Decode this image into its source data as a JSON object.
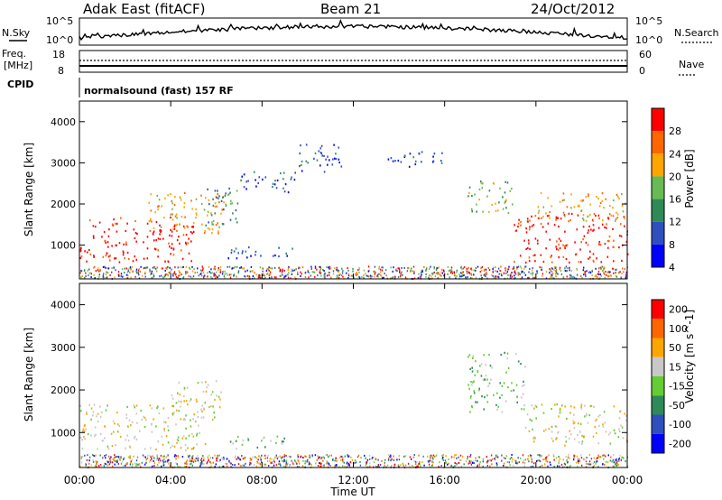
{
  "header": {
    "station": "Adak East (fitACF)",
    "beam": "Beam 21",
    "date": "24/Oct/2012"
  },
  "top_panel": {
    "left_label": "N.Sky",
    "right_label": "N.Search",
    "left_ticks": [
      "10^5",
      "10^0"
    ],
    "right_ticks": [
      "10^5",
      "10^0"
    ]
  },
  "freq_panel": {
    "left_label_line1": "Freq.",
    "left_label_line2": "[MHz]",
    "right_label": "Nave",
    "left_ticks": [
      "18",
      "8"
    ],
    "right_ticks": [
      "60",
      "0"
    ]
  },
  "cpid": {
    "label": "CPID",
    "program": "normalsound (fast) 157 RF"
  },
  "colors": {
    "power_scale": [
      "#0000ff",
      "#2f4fbf",
      "#2e8b57",
      "#66bb55",
      "#ffa500",
      "#ff6600",
      "#ff0000"
    ],
    "velocity_scale": [
      "#0000ff",
      "#2f4fbf",
      "#2e8b57",
      "#66cc33",
      "#c8c8c8",
      "#ffa500",
      "#ff6600",
      "#ff0000"
    ],
    "ground_scatter": "#c8c8c8"
  },
  "chart_data": [
    {
      "type": "heatmap",
      "name": "power",
      "xlabel": "",
      "ylabel": "Slant Range [km]",
      "xlim": [
        0,
        24
      ],
      "ylim": [
        180,
        4500
      ],
      "yticks": [
        "1000",
        "2000",
        "3000",
        "4000"
      ],
      "colorbar_label": "Power [dB]",
      "colorbar_ticks": [
        "28",
        "24",
        "20",
        "16",
        "12",
        "8",
        "4"
      ],
      "scatter_regions": [
        {
          "t0": 0.0,
          "t1": 5.0,
          "r0": 600,
          "r1": 1700,
          "level": 6
        },
        {
          "t0": 3.0,
          "t1": 6.3,
          "r0": 1300,
          "r1": 2300,
          "level": 4
        },
        {
          "t0": 5.5,
          "t1": 7.0,
          "r0": 1500,
          "r1": 2500,
          "level": 2
        },
        {
          "t0": 6.5,
          "t1": 9.5,
          "r0": 700,
          "r1": 1000,
          "level": 1
        },
        {
          "t0": 7.0,
          "t1": 9.5,
          "r0": 2300,
          "r1": 2800,
          "level": 1
        },
        {
          "t0": 9.5,
          "t1": 11.5,
          "r0": 2800,
          "r1": 3500,
          "level": 1
        },
        {
          "t0": 13.5,
          "t1": 16.0,
          "r0": 2900,
          "r1": 3300,
          "level": 1
        },
        {
          "t0": 17.0,
          "t1": 19.0,
          "r0": 1800,
          "r1": 2600,
          "level": 3
        },
        {
          "t0": 19.0,
          "t1": 24.0,
          "r0": 600,
          "r1": 1800,
          "level": 6
        },
        {
          "t0": 20.0,
          "t1": 24.0,
          "r0": 1600,
          "r1": 2300,
          "level": 4
        }
      ]
    },
    {
      "type": "heatmap",
      "name": "velocity",
      "xlabel": "Time UT",
      "ylabel": "Slant Range [km]",
      "xlim": [
        0,
        24
      ],
      "ylim": [
        180,
        4500
      ],
      "xticks": [
        "00:00",
        "04:00",
        "08:00",
        "12:00",
        "16:00",
        "20:00",
        "00:00"
      ],
      "yticks": [
        "1000",
        "2000",
        "3000",
        "4000"
      ],
      "colorbar_label": "Velocity [m s^-1]",
      "colorbar_ticks": [
        "200",
        "100",
        "50",
        "15",
        "-15",
        "-50",
        "-100",
        "-200"
      ],
      "scatter_regions": [
        {
          "t0": 0.0,
          "t1": 5.5,
          "r0": 600,
          "r1": 1700,
          "level": 4
        },
        {
          "t0": 4.0,
          "t1": 6.2,
          "r0": 1300,
          "r1": 2300,
          "level": 4
        },
        {
          "t0": 6.5,
          "t1": 9.0,
          "r0": 600,
          "r1": 950,
          "level": 3
        },
        {
          "t0": 17.0,
          "t1": 19.5,
          "r0": 1500,
          "r1": 2900,
          "level": 3
        },
        {
          "t0": 19.5,
          "t1": 24.0,
          "r0": 700,
          "r1": 1700,
          "level": 4
        }
      ]
    }
  ]
}
